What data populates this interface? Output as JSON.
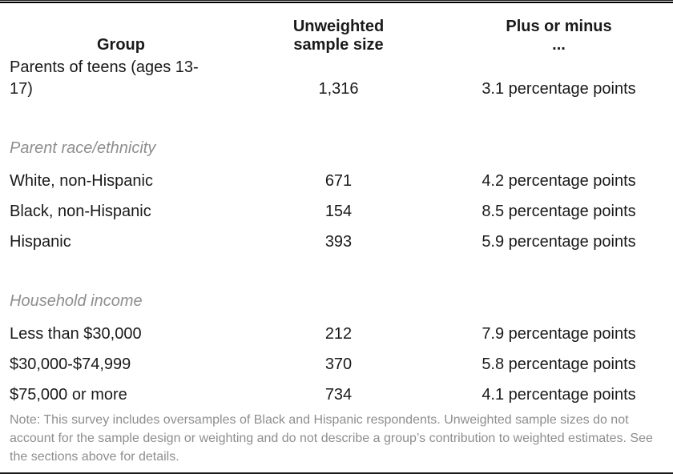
{
  "colors": {
    "text": "#1a1a1a",
    "muted_gray": "#8e8e8e",
    "rule": "#000000",
    "background": "#ffffff"
  },
  "table": {
    "header": {
      "group": "Group",
      "sample_size": "Unweighted sample size",
      "moe": "Plus or minus ..."
    },
    "rows": [
      {
        "type": "data",
        "group": "Parents of teens (ages 13-17)",
        "sample_size": "1,316",
        "moe": "3.1 percentage points"
      },
      {
        "type": "section",
        "label": "Parent race/ethnicity"
      },
      {
        "type": "data",
        "group": "White, non-Hispanic",
        "sample_size": "671",
        "moe": "4.2 percentage points"
      },
      {
        "type": "data",
        "group": "Black, non-Hispanic",
        "sample_size": "154",
        "moe": "8.5 percentage points"
      },
      {
        "type": "data",
        "group": "Hispanic",
        "sample_size": "393",
        "moe": "5.9 percentage points"
      },
      {
        "type": "section",
        "label": "Household income"
      },
      {
        "type": "data",
        "group": "Less than $30,000",
        "sample_size": "212",
        "moe": "7.9 percentage points"
      },
      {
        "type": "data",
        "group": "$30,000-$74,999",
        "sample_size": "370",
        "moe": "5.8 percentage points"
      },
      {
        "type": "data",
        "group": "$75,000 or more",
        "sample_size": "734",
        "moe": "4.1 percentage points"
      }
    ],
    "note": "Note: This survey includes oversamples of Black and Hispanic respondents. Unweighted sample sizes do not account for the sample design or weighting and do not describe a group’s contribution to weighted estimates. See the sections above for details."
  }
}
